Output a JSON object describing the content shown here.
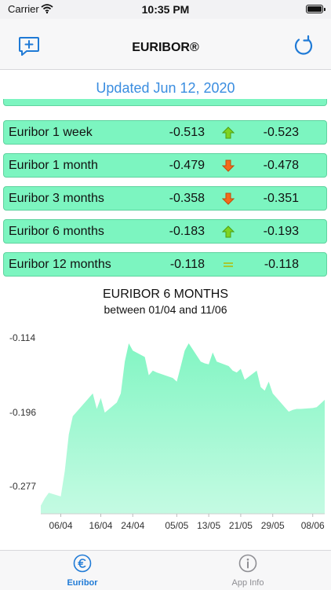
{
  "status": {
    "carrier": "Carrier",
    "time": "10:35 PM"
  },
  "nav": {
    "title": "EURIBOR®"
  },
  "updated": "Updated Jun 12, 2020",
  "rates": [
    {
      "name": "Euribor 1 week",
      "current": "-0.513",
      "trend": "up",
      "previous": "-0.523"
    },
    {
      "name": "Euribor 1 month",
      "current": "-0.479",
      "trend": "down",
      "previous": "-0.478"
    },
    {
      "name": "Euribor 3 months",
      "current": "-0.358",
      "trend": "down",
      "previous": "-0.351"
    },
    {
      "name": "Euribor 6 months",
      "current": "-0.183",
      "trend": "up",
      "previous": "-0.193"
    },
    {
      "name": "Euribor 12 months",
      "current": "-0.118",
      "trend": "same",
      "previous": "-0.118"
    }
  ],
  "chart_data": {
    "type": "area",
    "title": "EURIBOR 6 MONTHS",
    "subtitle": "between 01/04 and 11/06",
    "y_ticks": [
      "-0.114",
      "-0.196",
      "-0.277"
    ],
    "ylim": [
      -0.307,
      -0.114
    ],
    "x_ticks": [
      "06/04",
      "16/04",
      "24/04",
      "05/05",
      "13/05",
      "21/05",
      "29/05",
      "08/06"
    ],
    "color": "#7cf5c0",
    "points": [
      [
        "01/04",
        -0.298
      ],
      [
        "02/04",
        -0.29
      ],
      [
        "03/04",
        -0.284
      ],
      [
        "06/04",
        -0.288
      ],
      [
        "07/04",
        -0.26
      ],
      [
        "08/04",
        -0.22
      ],
      [
        "09/04",
        -0.2
      ],
      [
        "14/04",
        -0.175
      ],
      [
        "15/04",
        -0.192
      ],
      [
        "16/04",
        -0.18
      ],
      [
        "17/04",
        -0.196
      ],
      [
        "20/04",
        -0.185
      ],
      [
        "21/04",
        -0.175
      ],
      [
        "22/04",
        -0.14
      ],
      [
        "23/04",
        -0.12
      ],
      [
        "24/04",
        -0.128
      ],
      [
        "27/04",
        -0.135
      ],
      [
        "28/04",
        -0.155
      ],
      [
        "29/04",
        -0.15
      ],
      [
        "30/04",
        -0.152
      ],
      [
        "04/05",
        -0.158
      ],
      [
        "05/05",
        -0.162
      ],
      [
        "06/05",
        -0.145
      ],
      [
        "07/05",
        -0.128
      ],
      [
        "08/05",
        -0.12
      ],
      [
        "11/05",
        -0.14
      ],
      [
        "12/05",
        -0.142
      ],
      [
        "13/05",
        -0.143
      ],
      [
        "14/05",
        -0.13
      ],
      [
        "15/05",
        -0.14
      ],
      [
        "18/05",
        -0.145
      ],
      [
        "19/05",
        -0.15
      ],
      [
        "20/05",
        -0.152
      ],
      [
        "21/05",
        -0.148
      ],
      [
        "22/05",
        -0.16
      ],
      [
        "25/05",
        -0.15
      ],
      [
        "26/05",
        -0.168
      ],
      [
        "27/05",
        -0.172
      ],
      [
        "28/05",
        -0.162
      ],
      [
        "29/05",
        -0.175
      ],
      [
        "01/06",
        -0.19
      ],
      [
        "02/06",
        -0.195
      ],
      [
        "03/06",
        -0.193
      ],
      [
        "04/06",
        -0.192
      ],
      [
        "05/06",
        -0.192
      ],
      [
        "08/06",
        -0.191
      ],
      [
        "09/06",
        -0.19
      ],
      [
        "10/06",
        -0.186
      ],
      [
        "11/06",
        -0.182
      ]
    ]
  },
  "tabs": [
    {
      "label": "Euribor",
      "active": true
    },
    {
      "label": "App Info",
      "active": false
    }
  ]
}
